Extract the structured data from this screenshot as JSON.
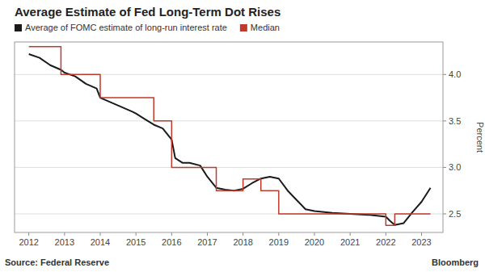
{
  "chart_data": {
    "type": "line",
    "title": "Average Estimate of Fed Long-Term Dot Rises",
    "ylabel": "Percent",
    "annotations": [
      "Source: Federal Reserve",
      "Bloomberg"
    ],
    "xlim": [
      2011.6,
      2023.6
    ],
    "xticks": [
      2012,
      2013,
      2014,
      2015,
      2016,
      2017,
      2018,
      2019,
      2020,
      2021,
      2022,
      2023
    ],
    "ylim": [
      2.3,
      4.35
    ],
    "yticks": [
      2.5,
      {
        "value": 3.0,
        "label": "3.0"
      },
      3.5,
      {
        "value": 4.0,
        "label": "4.0"
      }
    ],
    "grid": true,
    "legend": "upper left",
    "series": [
      {
        "name": "Average of FOMC estimate of long-run interest rate",
        "type": "line",
        "color": "#1a1a1a",
        "x": [
          2012.0,
          2012.3,
          2012.6,
          2012.9,
          2013.0,
          2013.3,
          2013.6,
          2013.9,
          2014.0,
          2014.3,
          2014.6,
          2014.9,
          2015.0,
          2015.25,
          2015.5,
          2015.75,
          2016.0,
          2016.1,
          2016.3,
          2016.5,
          2016.8,
          2017.0,
          2017.25,
          2017.5,
          2017.75,
          2018.0,
          2018.25,
          2018.5,
          2018.75,
          2019.0,
          2019.25,
          2019.5,
          2019.75,
          2020.0,
          2020.5,
          2021.0,
          2021.5,
          2021.75,
          2022.0,
          2022.1,
          2022.25,
          2022.5,
          2022.75,
          2023.0,
          2023.25
        ],
        "values": [
          4.22,
          4.18,
          4.1,
          4.05,
          4.02,
          3.98,
          3.9,
          3.85,
          3.75,
          3.7,
          3.65,
          3.6,
          3.58,
          3.52,
          3.46,
          3.42,
          3.3,
          3.1,
          3.05,
          3.05,
          3.02,
          2.9,
          2.78,
          2.76,
          2.75,
          2.77,
          2.83,
          2.88,
          2.9,
          2.88,
          2.75,
          2.65,
          2.55,
          2.53,
          2.51,
          2.5,
          2.49,
          2.48,
          2.47,
          2.43,
          2.38,
          2.4,
          2.52,
          2.63,
          2.78
        ]
      },
      {
        "name": "Median",
        "type": "step",
        "color": "#c0392b",
        "x": [
          2012.0,
          2012.25,
          2012.9,
          2013.0,
          2013.75,
          2014.0,
          2014.75,
          2015.0,
          2015.5,
          2015.75,
          2015.9,
          2016.0,
          2016.75,
          2017.0,
          2017.25,
          2017.5,
          2017.75,
          2018.0,
          2018.4,
          2018.5,
          2018.75,
          2019.0,
          2019.75,
          2020.0,
          2021.75,
          2022.0,
          2022.1,
          2022.25,
          2022.5,
          2023.0,
          2023.25
        ],
        "values": [
          4.3,
          4.3,
          4.0,
          4.0,
          4.0,
          3.75,
          3.75,
          3.75,
          3.5,
          3.5,
          3.5,
          3.0,
          3.0,
          3.0,
          2.75,
          2.75,
          2.75,
          2.875,
          2.875,
          2.75,
          2.75,
          2.5,
          2.5,
          2.5,
          2.5,
          2.375,
          2.375,
          2.5,
          2.5,
          2.5,
          2.5
        ]
      }
    ]
  }
}
